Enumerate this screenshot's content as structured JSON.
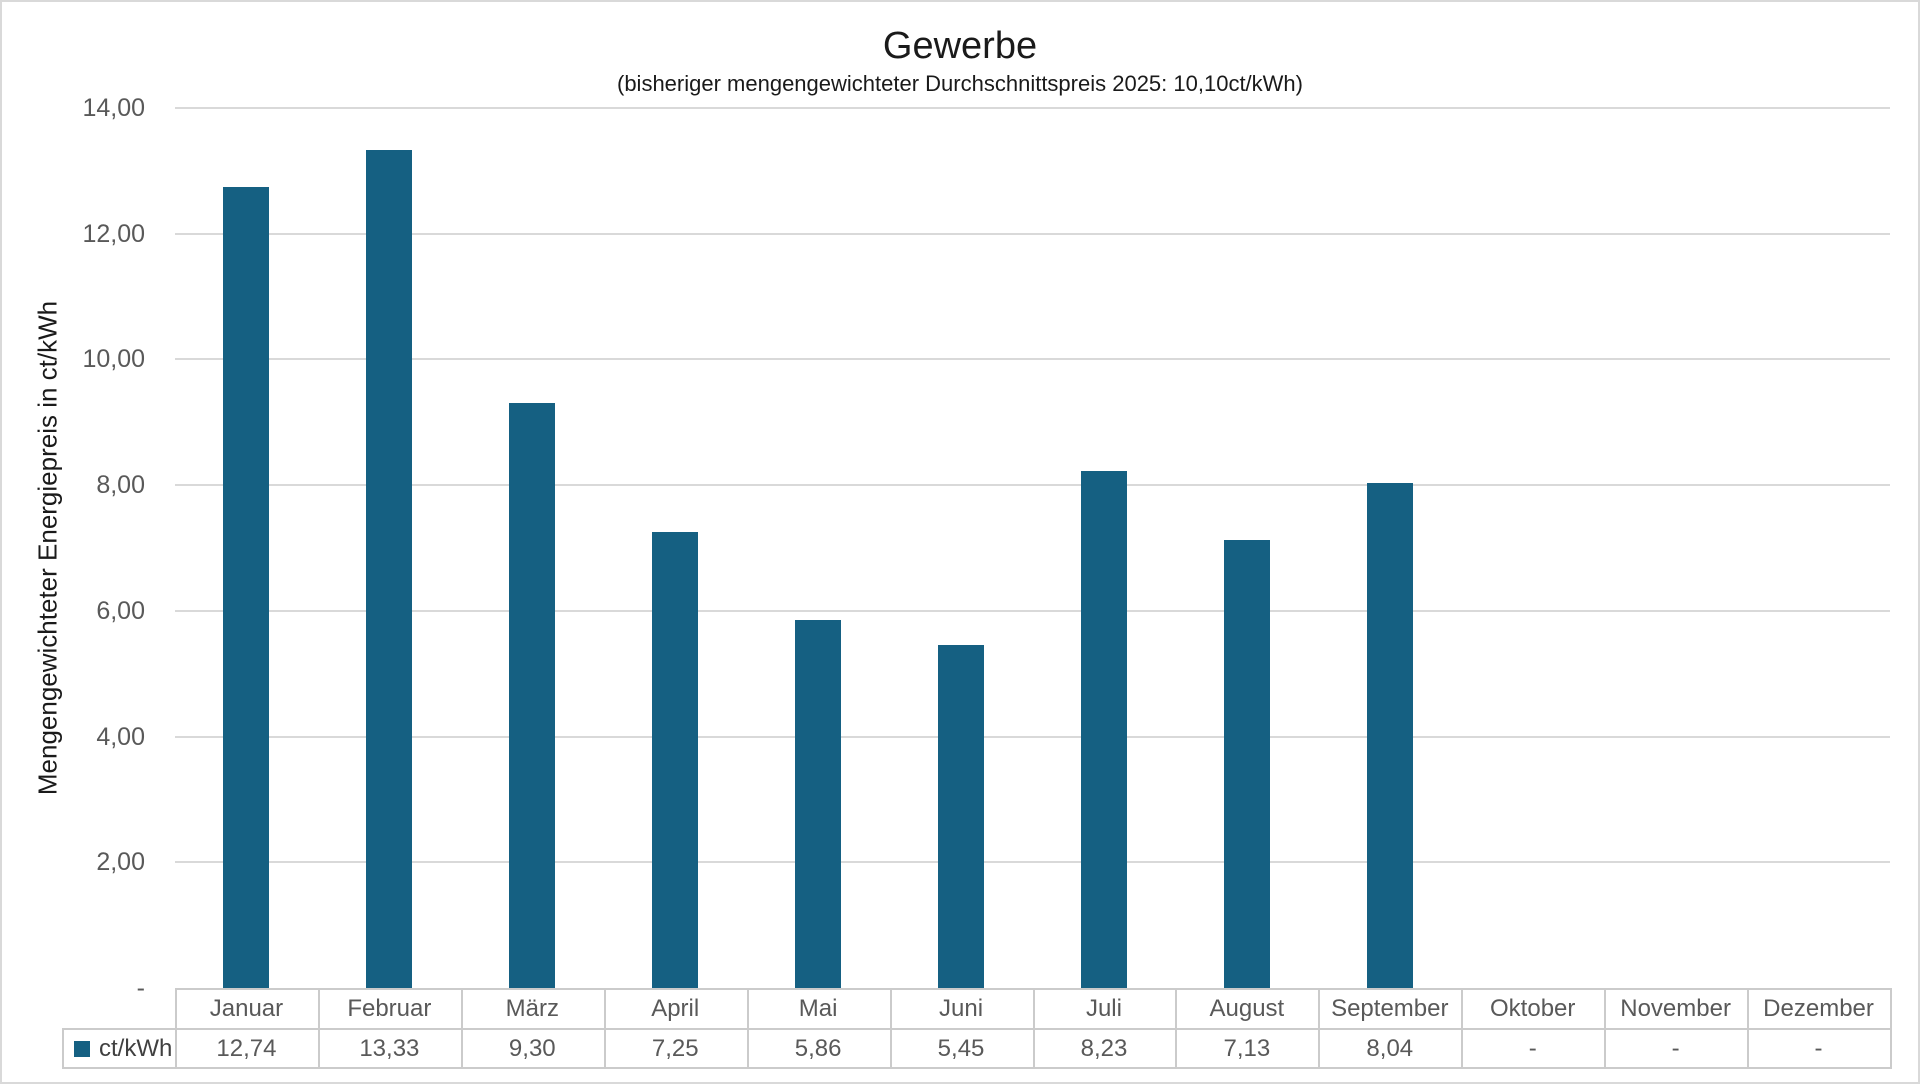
{
  "title": "Gewerbe",
  "subtitle": "(bisheriger mengengewichteter Durchschnittspreis 2025: 10,10ct/kWh)",
  "y_axis_title": "Mengengewichteter Energiepreis in ct/kWh",
  "legend": {
    "series_label": "ct/kWh"
  },
  "colors": {
    "bar": "#156082",
    "gridline": "#D9D9D9",
    "table_border": "#CBCBCB",
    "tick_text": "#595959",
    "table_text": "#595959",
    "legend_text": "#404040",
    "title_text": "#1A1A1A"
  },
  "chart_data": {
    "type": "bar",
    "title": "Gewerbe",
    "subtitle": "(bisheriger mengengewichteter Durchschnittspreis 2025: 10,10ct/kWh)",
    "ylabel": "Mengengewichteter Energiepreis in ct/kWh",
    "xlabel": "",
    "ylim": [
      0,
      14
    ],
    "grid": true,
    "legend_position": "data-table-left",
    "categories": [
      "Januar",
      "Februar",
      "März",
      "April",
      "Mai",
      "Juni",
      "Juli",
      "August",
      "September",
      "Oktober",
      "November",
      "Dezember"
    ],
    "series": [
      {
        "name": "ct/kWh",
        "values": [
          12.74,
          13.33,
          9.3,
          7.25,
          5.86,
          5.45,
          8.23,
          7.13,
          8.04,
          null,
          null,
          null
        ],
        "value_labels": [
          "12,74",
          "13,33",
          "9,30",
          "7,25",
          "5,86",
          "5,45",
          "8,23",
          "7,13",
          "8,04",
          "-",
          "-",
          "-"
        ]
      }
    ],
    "yticks": [
      {
        "value": 0,
        "label": "-"
      },
      {
        "value": 2,
        "label": "2,00"
      },
      {
        "value": 4,
        "label": "4,00"
      },
      {
        "value": 6,
        "label": "6,00"
      },
      {
        "value": 8,
        "label": "8,00"
      },
      {
        "value": 10,
        "label": "10,00"
      },
      {
        "value": 12,
        "label": "12,00"
      },
      {
        "value": 14,
        "label": "14,00"
      }
    ]
  }
}
